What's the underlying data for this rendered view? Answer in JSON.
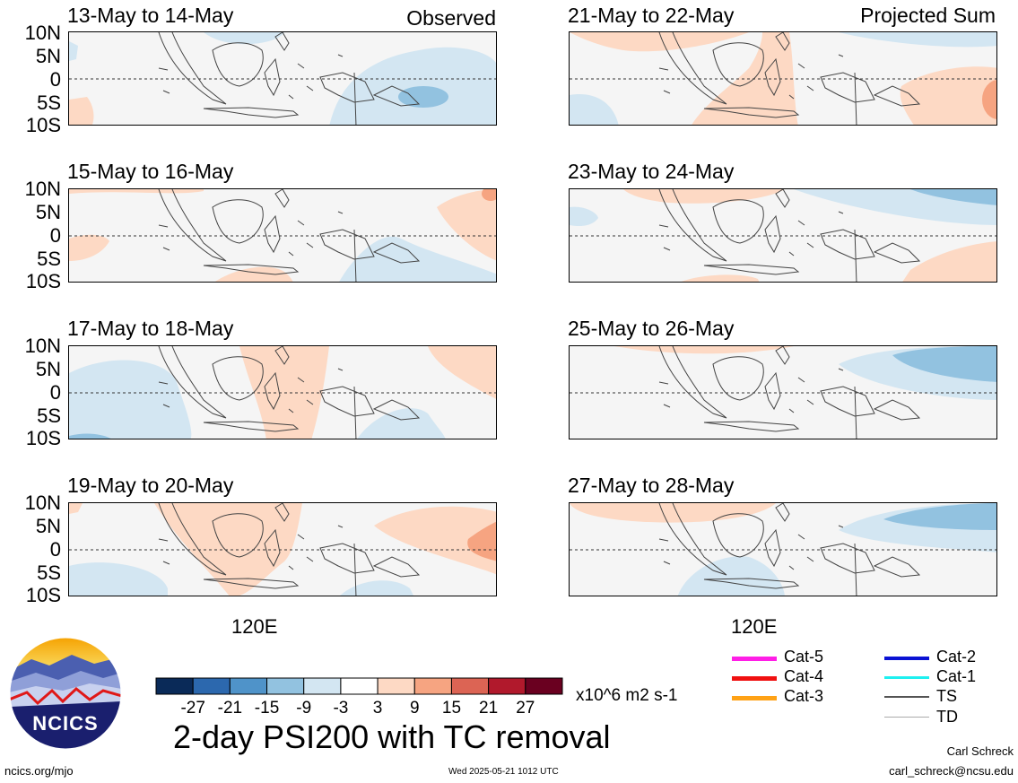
{
  "header": {
    "observed_label": "Observed",
    "projected_label": "Projected Sum"
  },
  "lat_labels": [
    "10N",
    "5N",
    "0",
    "5S",
    "10S"
  ],
  "lon_label": "120E",
  "panels": {
    "left": [
      {
        "title": "13-May to 14-May"
      },
      {
        "title": "15-May to 16-May"
      },
      {
        "title": "17-May to 18-May"
      },
      {
        "title": "19-May to 20-May"
      }
    ],
    "right": [
      {
        "title": "21-May to 22-May"
      },
      {
        "title": "23-May to 24-May"
      },
      {
        "title": "25-May to 26-May"
      },
      {
        "title": "27-May to 28-May"
      }
    ]
  },
  "colorbar": {
    "colors": [
      "#0a2a58",
      "#2c68ae",
      "#4f93c9",
      "#92c2e0",
      "#d3e6f2",
      "#ffffff",
      "#fdd9c4",
      "#f6a481",
      "#dc6454",
      "#b1192c",
      "#6a0020"
    ],
    "tick_labels": [
      "-27",
      "-21",
      "-15",
      "-9",
      "-3",
      "3",
      "9",
      "15",
      "21",
      "27"
    ],
    "units": "x10^6 m2 s-1"
  },
  "legend": {
    "left": [
      {
        "label": "Cat-5",
        "color": "#ff1ee6"
      },
      {
        "label": "Cat-4",
        "color": "#f01010"
      },
      {
        "label": "Cat-3",
        "color": "#ffa216"
      }
    ],
    "right": [
      {
        "label": "Cat-2",
        "color": "#0a12d4"
      },
      {
        "label": "Cat-1",
        "color": "#1ef0f0"
      },
      {
        "label": "TS",
        "color": "#555555"
      },
      {
        "label": "TD",
        "color": "#aaaaaa"
      }
    ]
  },
  "logo": {
    "text": "NCICS"
  },
  "footer": {
    "title": "2-day PSI200 with TC removal",
    "site": "ncics.org/mjo",
    "timestamp": "Wed 2025-05-21 1012 UTC",
    "author": "Carl Schreck",
    "email": "carl_schreck@ncsu.edu"
  }
}
